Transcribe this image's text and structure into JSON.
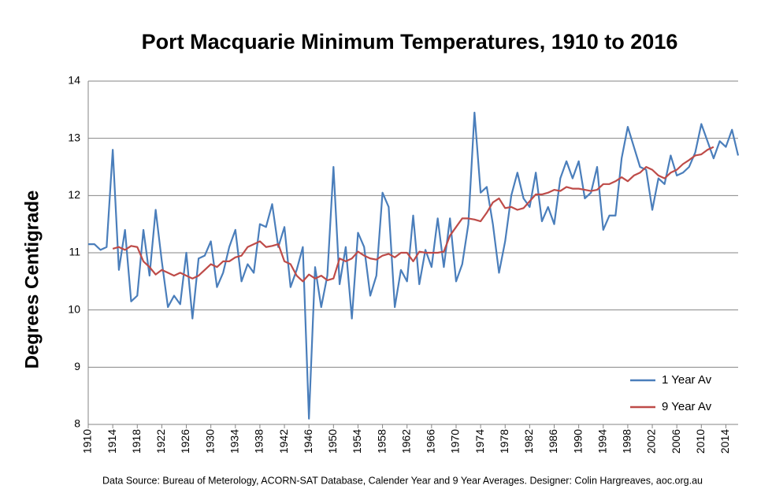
{
  "chart_data": {
    "type": "line",
    "title": "Port Macquarie Minimum Temperatures, 1910 to 2016",
    "y_label": "Degrees Centigrade",
    "footnote": "Data Source: Bureau of Meterology, ACORN-SAT  Database, Calender Year and 9 Year Averages. Designer: Colin Hargreaves, aoc.org.au",
    "x": [
      1910,
      1911,
      1912,
      1913,
      1914,
      1915,
      1916,
      1917,
      1918,
      1919,
      1920,
      1921,
      1922,
      1923,
      1924,
      1925,
      1926,
      1927,
      1928,
      1929,
      1930,
      1931,
      1932,
      1933,
      1934,
      1935,
      1936,
      1937,
      1938,
      1939,
      1940,
      1941,
      1942,
      1943,
      1944,
      1945,
      1946,
      1947,
      1948,
      1949,
      1950,
      1951,
      1952,
      1953,
      1954,
      1955,
      1956,
      1957,
      1958,
      1959,
      1960,
      1961,
      1962,
      1963,
      1964,
      1965,
      1966,
      1967,
      1968,
      1969,
      1970,
      1971,
      1972,
      1973,
      1974,
      1975,
      1976,
      1977,
      1978,
      1979,
      1980,
      1981,
      1982,
      1983,
      1984,
      1985,
      1986,
      1987,
      1988,
      1989,
      1990,
      1991,
      1992,
      1993,
      1994,
      1995,
      1996,
      1997,
      1998,
      1999,
      2000,
      2001,
      2002,
      2003,
      2004,
      2005,
      2006,
      2007,
      2008,
      2009,
      2010,
      2011,
      2012,
      2013,
      2014,
      2015,
      2016
    ],
    "series": [
      {
        "name": "1 Year Av",
        "color": "#4a7ebb",
        "values": [
          11.15,
          11.15,
          11.05,
          11.1,
          12.8,
          10.7,
          11.4,
          10.15,
          10.25,
          11.4,
          10.6,
          11.75,
          10.85,
          10.05,
          10.25,
          10.1,
          11.0,
          9.85,
          10.9,
          10.95,
          11.2,
          10.4,
          10.65,
          11.1,
          11.4,
          10.5,
          10.8,
          10.65,
          11.5,
          11.45,
          11.85,
          11.1,
          11.45,
          10.4,
          10.7,
          11.1,
          8.1,
          10.75,
          10.05,
          10.6,
          12.5,
          10.45,
          11.1,
          9.85,
          11.35,
          11.1,
          10.25,
          10.6,
          12.05,
          11.8,
          10.05,
          10.7,
          10.5,
          11.65,
          10.45,
          11.05,
          10.75,
          11.6,
          10.75,
          11.6,
          10.5,
          10.8,
          11.5,
          13.45,
          12.05,
          12.15,
          11.5,
          10.65,
          11.2,
          12.0,
          12.4,
          11.95,
          11.8,
          12.4,
          11.55,
          11.8,
          11.5,
          12.3,
          12.6,
          12.3,
          12.6,
          11.95,
          12.05,
          12.5,
          11.4,
          11.65,
          11.65,
          12.65,
          13.2,
          12.85,
          12.5,
          12.45,
          11.75,
          12.3,
          12.2,
          12.7,
          12.35,
          12.4,
          12.5,
          12.75,
          13.25,
          12.95,
          12.65,
          12.95,
          12.85,
          13.15,
          12.7
        ]
      },
      {
        "name": "9 Year Av",
        "color": "#be4b48",
        "values": [
          null,
          null,
          null,
          null,
          11.07,
          11.1,
          11.05,
          11.12,
          11.1,
          10.85,
          10.75,
          10.62,
          10.7,
          10.65,
          10.6,
          10.65,
          10.6,
          10.55,
          10.6,
          10.7,
          10.8,
          10.75,
          10.85,
          10.85,
          10.92,
          10.95,
          11.1,
          11.15,
          11.2,
          11.1,
          11.12,
          11.15,
          10.85,
          10.8,
          10.6,
          10.5,
          10.62,
          10.55,
          10.6,
          10.52,
          10.55,
          10.9,
          10.85,
          10.9,
          11.02,
          10.95,
          10.9,
          10.88,
          10.95,
          10.98,
          10.92,
          11.0,
          11.0,
          10.85,
          11.02,
          11.0,
          11.0,
          11.0,
          11.02,
          11.3,
          11.45,
          11.6,
          11.6,
          11.58,
          11.55,
          11.7,
          11.88,
          11.95,
          11.78,
          11.8,
          11.75,
          11.78,
          11.9,
          12.02,
          12.02,
          12.05,
          12.1,
          12.08,
          12.15,
          12.12,
          12.12,
          12.1,
          12.08,
          12.1,
          12.2,
          12.2,
          12.25,
          12.32,
          12.25,
          12.35,
          12.4,
          12.5,
          12.45,
          12.35,
          12.3,
          12.4,
          12.45,
          12.55,
          12.62,
          12.7,
          12.72,
          12.8,
          12.85,
          null,
          null,
          null,
          null
        ]
      }
    ],
    "xlim": [
      1910,
      2016
    ],
    "xticks": [
      1910,
      1914,
      1918,
      1922,
      1926,
      1930,
      1934,
      1938,
      1942,
      1946,
      1950,
      1954,
      1958,
      1962,
      1966,
      1970,
      1974,
      1978,
      1982,
      1986,
      1990,
      1994,
      1998,
      2002,
      2006,
      2010,
      2014
    ],
    "ylim": [
      8,
      14
    ],
    "yticks": [
      8,
      9,
      10,
      11,
      12,
      13,
      14
    ],
    "grid": true,
    "legend": "lower right"
  }
}
